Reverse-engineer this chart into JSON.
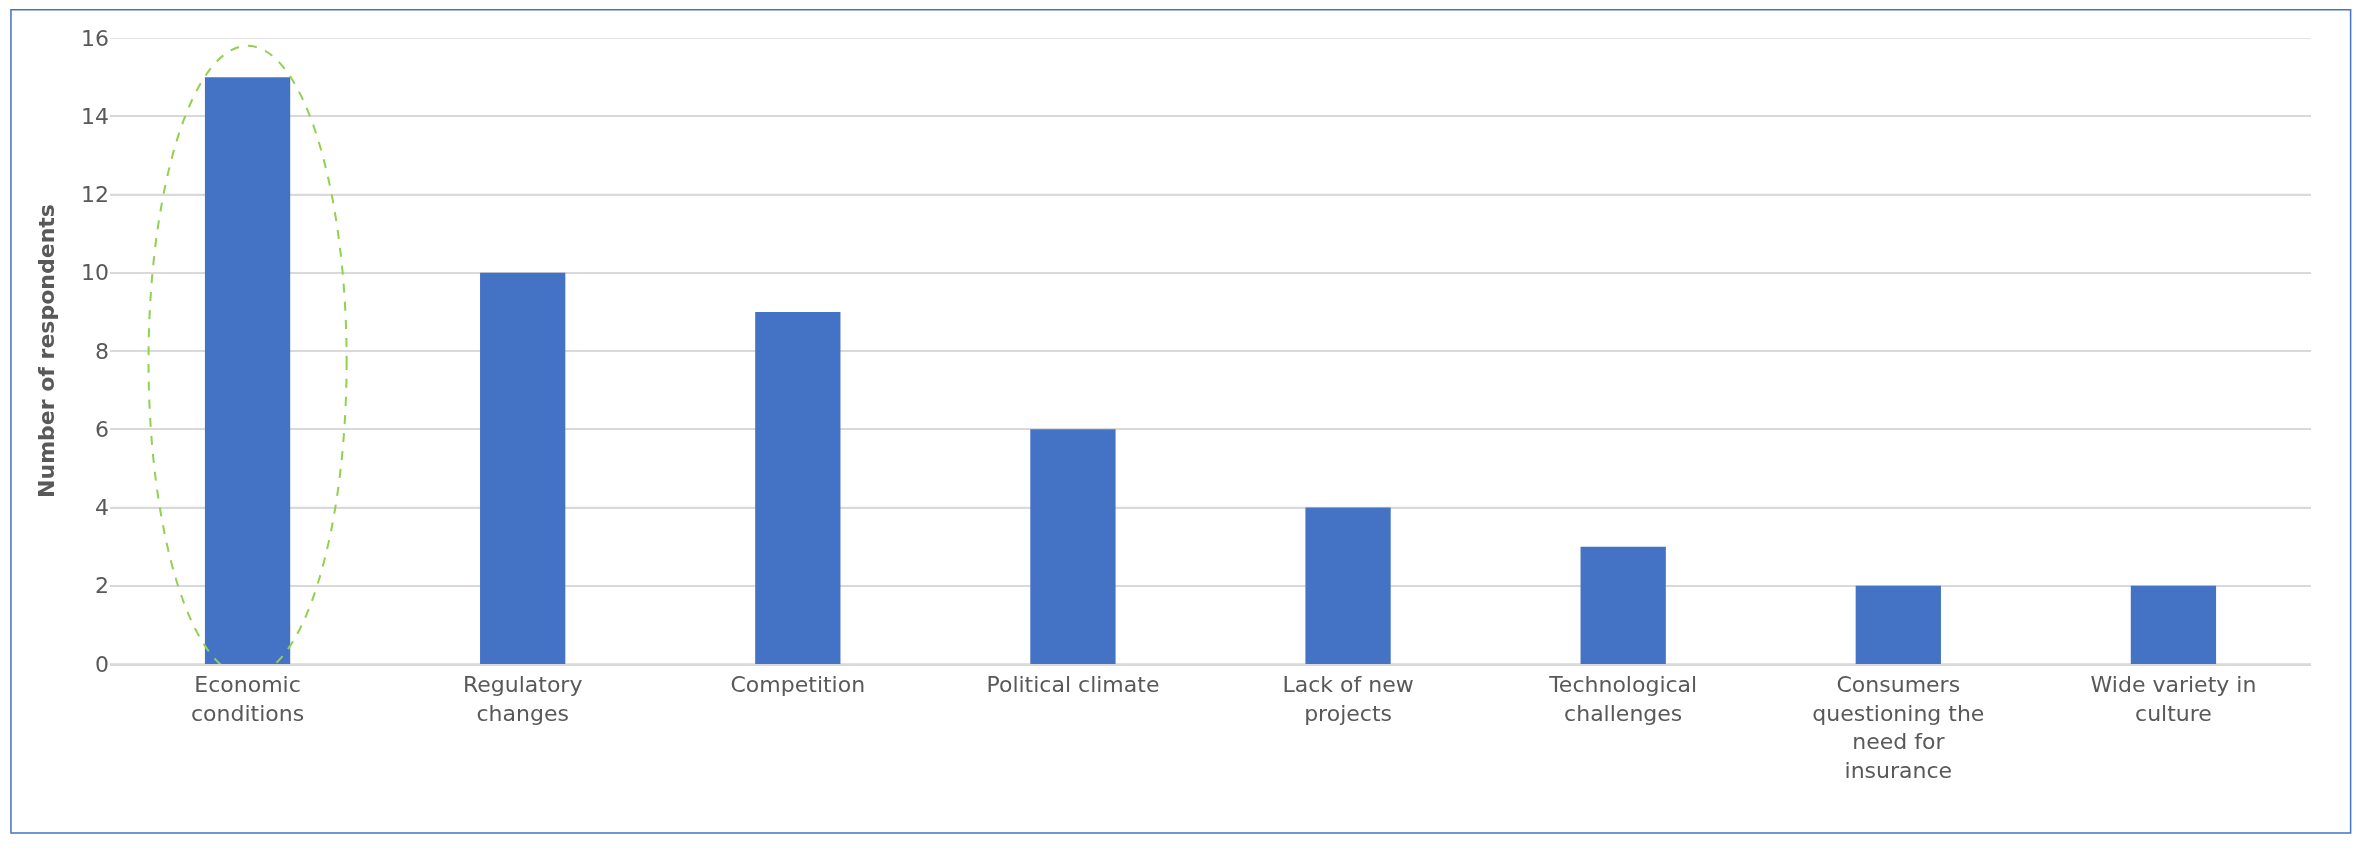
{
  "chart_data": {
    "type": "bar",
    "ylabel": "Number of respondents",
    "categories": [
      "Economic conditions",
      "Regulatory changes",
      "Competition",
      "Political climate",
      "Lack of new projects",
      "Technological challenges",
      "Consumers questioning the need for insurance",
      "Wide variety in culture"
    ],
    "values": [
      15,
      10,
      9,
      6,
      4,
      3,
      2,
      2
    ],
    "color": "#4472c4",
    "ylim": [
      0,
      16
    ],
    "yticks": [
      0,
      2,
      4,
      6,
      8,
      10,
      12,
      14,
      16
    ],
    "grid": "y"
  }
}
